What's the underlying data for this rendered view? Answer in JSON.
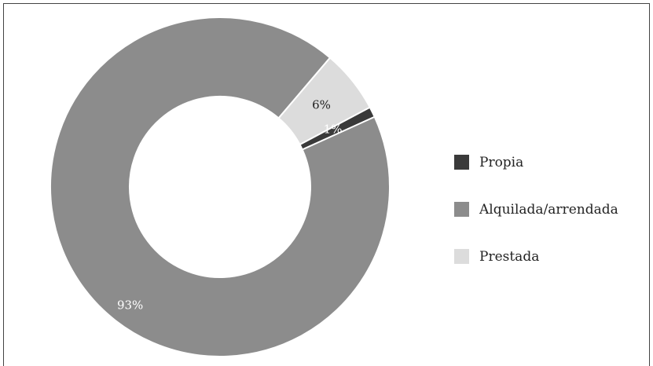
{
  "chart_data": {
    "type": "pie",
    "donut": true,
    "start_angle_deg": 62,
    "slices": [
      {
        "label": "Propia",
        "value": 1,
        "display": "1%",
        "color": "#3a3a3a",
        "label_color": "#ffffff"
      },
      {
        "label": "Alquilada/arrendada",
        "value": 93,
        "display": "93%",
        "color": "#8c8c8c",
        "label_color": "#ffffff"
      },
      {
        "label": "Prestada",
        "value": 6,
        "display": "6%",
        "color": "#dcdcdc",
        "label_color": "#222222"
      }
    ],
    "legend_placement": "right"
  }
}
